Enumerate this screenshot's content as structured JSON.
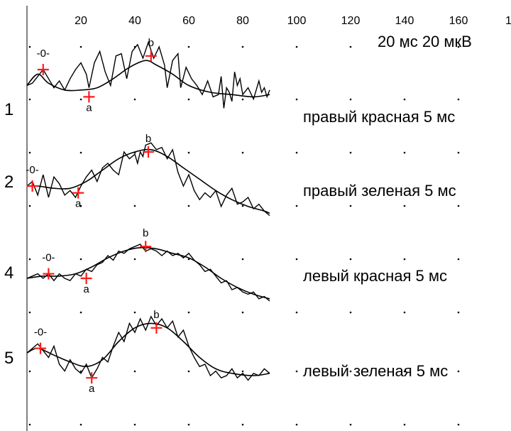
{
  "chart_data": {
    "type": "line",
    "x_ticks": [
      20,
      40,
      60,
      80,
      100,
      120,
      140,
      160
    ],
    "x_tick_last_partial": "1",
    "scale_label": "20 мс 20 мкВ",
    "xlim": [
      0,
      170
    ],
    "grid_dots": true,
    "traces": [
      {
        "number": "1",
        "label": "правый красная 5 мс",
        "raw": [
          [
            0,
            -6
          ],
          [
            2,
            -8
          ],
          [
            4,
            -14
          ],
          [
            6,
            -20
          ],
          [
            8,
            -12
          ],
          [
            10,
            -4
          ],
          [
            12,
            -10
          ],
          [
            14,
            -2
          ],
          [
            16,
            -12
          ],
          [
            18,
            -20
          ],
          [
            20,
            -26
          ],
          [
            22,
            -16
          ],
          [
            23,
            -4
          ],
          [
            25,
            -26
          ],
          [
            27,
            -36
          ],
          [
            29,
            -18
          ],
          [
            31,
            -6
          ],
          [
            33,
            -32
          ],
          [
            35,
            -34
          ],
          [
            37,
            -12
          ],
          [
            39,
            -36
          ],
          [
            41,
            -42
          ],
          [
            43,
            -30
          ],
          [
            45,
            -44
          ],
          [
            47,
            -30
          ],
          [
            49,
            -40
          ],
          [
            51,
            -24
          ],
          [
            52,
            -4
          ],
          [
            54,
            -28
          ],
          [
            56,
            -34
          ],
          [
            57,
            -4
          ],
          [
            59,
            -22
          ],
          [
            61,
            -12
          ],
          [
            63,
            -6
          ],
          [
            65,
            2
          ],
          [
            67,
            -10
          ],
          [
            69,
            4
          ],
          [
            71,
            2
          ],
          [
            72,
            -14
          ],
          [
            73,
            14
          ],
          [
            74,
            -4
          ],
          [
            75,
            0
          ],
          [
            76,
            8
          ],
          [
            77,
            -18
          ],
          [
            78,
            -6
          ],
          [
            79,
            -12
          ],
          [
            80,
            2
          ],
          [
            82,
            -4
          ],
          [
            84,
            6
          ],
          [
            86,
            -10
          ],
          [
            87,
            0
          ],
          [
            88,
            -4
          ],
          [
            89,
            4
          ],
          [
            90,
            -2
          ]
        ],
        "fit": [
          [
            0,
            -6
          ],
          [
            4,
            -16
          ],
          [
            8,
            -8
          ],
          [
            14,
            -2
          ],
          [
            20,
            -2
          ],
          [
            26,
            -4
          ],
          [
            32,
            -12
          ],
          [
            38,
            -22
          ],
          [
            44,
            -28
          ],
          [
            48,
            -24
          ],
          [
            54,
            -16
          ],
          [
            60,
            -6
          ],
          [
            68,
            0
          ],
          [
            76,
            2
          ],
          [
            84,
            4
          ],
          [
            90,
            2
          ]
        ],
        "markers": [
          {
            "x": 6,
            "y": -20,
            "label": "-0-"
          },
          {
            "x": 23,
            "y": 4,
            "label": "a"
          },
          {
            "x": 46,
            "y": -32,
            "label": "b"
          }
        ]
      },
      {
        "number": "2",
        "label": "правый зеленая 5 мс",
        "raw": [
          [
            0,
            0
          ],
          [
            2,
            -4
          ],
          [
            4,
            8
          ],
          [
            6,
            -10
          ],
          [
            8,
            10
          ],
          [
            10,
            -8
          ],
          [
            12,
            -2
          ],
          [
            14,
            8
          ],
          [
            16,
            4
          ],
          [
            18,
            10
          ],
          [
            20,
            0
          ],
          [
            22,
            -8
          ],
          [
            24,
            -14
          ],
          [
            26,
            -4
          ],
          [
            28,
            -16
          ],
          [
            30,
            -20
          ],
          [
            32,
            -14
          ],
          [
            34,
            -10
          ],
          [
            36,
            -30
          ],
          [
            38,
            -24
          ],
          [
            40,
            -28
          ],
          [
            41,
            -20
          ],
          [
            42,
            -30
          ],
          [
            43,
            -26
          ],
          [
            44,
            -36
          ],
          [
            46,
            -38
          ],
          [
            48,
            -32
          ],
          [
            50,
            -34
          ],
          [
            52,
            -24
          ],
          [
            54,
            -32
          ],
          [
            56,
            -12
          ],
          [
            58,
            0
          ],
          [
            60,
            -10
          ],
          [
            62,
            4
          ],
          [
            64,
            12
          ],
          [
            66,
            6
          ],
          [
            68,
            10
          ],
          [
            70,
            4
          ],
          [
            72,
            18
          ],
          [
            74,
            8
          ],
          [
            76,
            2
          ],
          [
            78,
            16
          ],
          [
            80,
            14
          ],
          [
            82,
            10
          ],
          [
            84,
            20
          ],
          [
            86,
            16
          ],
          [
            88,
            22
          ],
          [
            90,
            26
          ]
        ],
        "fit": [
          [
            0,
            0
          ],
          [
            4,
            0
          ],
          [
            10,
            2
          ],
          [
            16,
            2
          ],
          [
            22,
            -4
          ],
          [
            28,
            -14
          ],
          [
            34,
            -24
          ],
          [
            40,
            -30
          ],
          [
            46,
            -32
          ],
          [
            52,
            -26
          ],
          [
            58,
            -16
          ],
          [
            64,
            -6
          ],
          [
            70,
            4
          ],
          [
            76,
            12
          ],
          [
            82,
            18
          ],
          [
            88,
            22
          ],
          [
            90,
            24
          ]
        ],
        "markers": [
          {
            "x": 2,
            "y": 0,
            "label": "-0-"
          },
          {
            "x": 19,
            "y": 6,
            "label": "a"
          },
          {
            "x": 45,
            "y": -30,
            "label": "b"
          }
        ]
      },
      {
        "number": "4",
        "label": "левый красная 5 мс",
        "raw": [
          [
            0,
            0
          ],
          [
            2,
            -2
          ],
          [
            4,
            -4
          ],
          [
            6,
            0
          ],
          [
            8,
            -4
          ],
          [
            10,
            2
          ],
          [
            12,
            -4
          ],
          [
            14,
            0
          ],
          [
            16,
            2
          ],
          [
            18,
            -4
          ],
          [
            20,
            -2
          ],
          [
            22,
            -8
          ],
          [
            24,
            -6
          ],
          [
            26,
            -12
          ],
          [
            28,
            -14
          ],
          [
            30,
            -20
          ],
          [
            32,
            -16
          ],
          [
            34,
            -24
          ],
          [
            36,
            -22
          ],
          [
            38,
            -26
          ],
          [
            40,
            -28
          ],
          [
            42,
            -30
          ],
          [
            44,
            -24
          ],
          [
            46,
            -26
          ],
          [
            48,
            -24
          ],
          [
            50,
            -20
          ],
          [
            52,
            -24
          ],
          [
            54,
            -20
          ],
          [
            56,
            -22
          ],
          [
            58,
            -18
          ],
          [
            60,
            -22
          ],
          [
            62,
            -16
          ],
          [
            64,
            -12
          ],
          [
            66,
            -6
          ],
          [
            68,
            -8
          ],
          [
            70,
            -2
          ],
          [
            72,
            4
          ],
          [
            74,
            2
          ],
          [
            76,
            10
          ],
          [
            78,
            8
          ],
          [
            80,
            12
          ],
          [
            82,
            14
          ],
          [
            84,
            12
          ],
          [
            86,
            18
          ],
          [
            88,
            16
          ],
          [
            90,
            20
          ]
        ],
        "fit": [
          [
            0,
            0
          ],
          [
            6,
            -2
          ],
          [
            12,
            -2
          ],
          [
            18,
            -4
          ],
          [
            24,
            -10
          ],
          [
            30,
            -18
          ],
          [
            36,
            -24
          ],
          [
            42,
            -27
          ],
          [
            48,
            -26
          ],
          [
            54,
            -22
          ],
          [
            60,
            -18
          ],
          [
            66,
            -10
          ],
          [
            72,
            0
          ],
          [
            78,
            8
          ],
          [
            84,
            14
          ],
          [
            90,
            18
          ]
        ],
        "markers": [
          {
            "x": 8,
            "y": -4,
            "label": "-0-"
          },
          {
            "x": 22,
            "y": 0,
            "label": "a"
          },
          {
            "x": 44,
            "y": -28,
            "label": "b"
          }
        ]
      },
      {
        "number": "5",
        "label": "левый зеленая 5 мс",
        "raw": [
          [
            0,
            0
          ],
          [
            2,
            -4
          ],
          [
            4,
            -8
          ],
          [
            6,
            -2
          ],
          [
            8,
            4
          ],
          [
            10,
            -6
          ],
          [
            12,
            10
          ],
          [
            14,
            16
          ],
          [
            16,
            6
          ],
          [
            18,
            14
          ],
          [
            20,
            18
          ],
          [
            22,
            10
          ],
          [
            24,
            22
          ],
          [
            26,
            14
          ],
          [
            28,
            4
          ],
          [
            30,
            8
          ],
          [
            32,
            -6
          ],
          [
            34,
            -18
          ],
          [
            36,
            -10
          ],
          [
            38,
            -26
          ],
          [
            40,
            -18
          ],
          [
            42,
            -30
          ],
          [
            44,
            -20
          ],
          [
            46,
            -32
          ],
          [
            48,
            -24
          ],
          [
            50,
            -30
          ],
          [
            52,
            -22
          ],
          [
            54,
            -28
          ],
          [
            56,
            -14
          ],
          [
            58,
            -20
          ],
          [
            60,
            -6
          ],
          [
            62,
            4
          ],
          [
            64,
            12
          ],
          [
            66,
            10
          ],
          [
            68,
            20
          ],
          [
            70,
            16
          ],
          [
            72,
            22
          ],
          [
            74,
            20
          ],
          [
            76,
            14
          ],
          [
            78,
            22
          ],
          [
            80,
            18
          ],
          [
            82,
            24
          ],
          [
            84,
            18
          ],
          [
            86,
            20
          ],
          [
            88,
            14
          ],
          [
            90,
            18
          ]
        ],
        "fit": [
          [
            0,
            0
          ],
          [
            4,
            -4
          ],
          [
            10,
            2
          ],
          [
            16,
            8
          ],
          [
            22,
            12
          ],
          [
            28,
            6
          ],
          [
            34,
            -10
          ],
          [
            40,
            -22
          ],
          [
            46,
            -26
          ],
          [
            52,
            -22
          ],
          [
            58,
            -10
          ],
          [
            64,
            4
          ],
          [
            70,
            14
          ],
          [
            76,
            18
          ],
          [
            84,
            20
          ],
          [
            90,
            18
          ]
        ],
        "markers": [
          {
            "x": 5,
            "y": -4,
            "label": "-0-"
          },
          {
            "x": 24,
            "y": 22,
            "label": "a"
          },
          {
            "x": 48,
            "y": -22,
            "label": "b"
          }
        ]
      }
    ]
  }
}
